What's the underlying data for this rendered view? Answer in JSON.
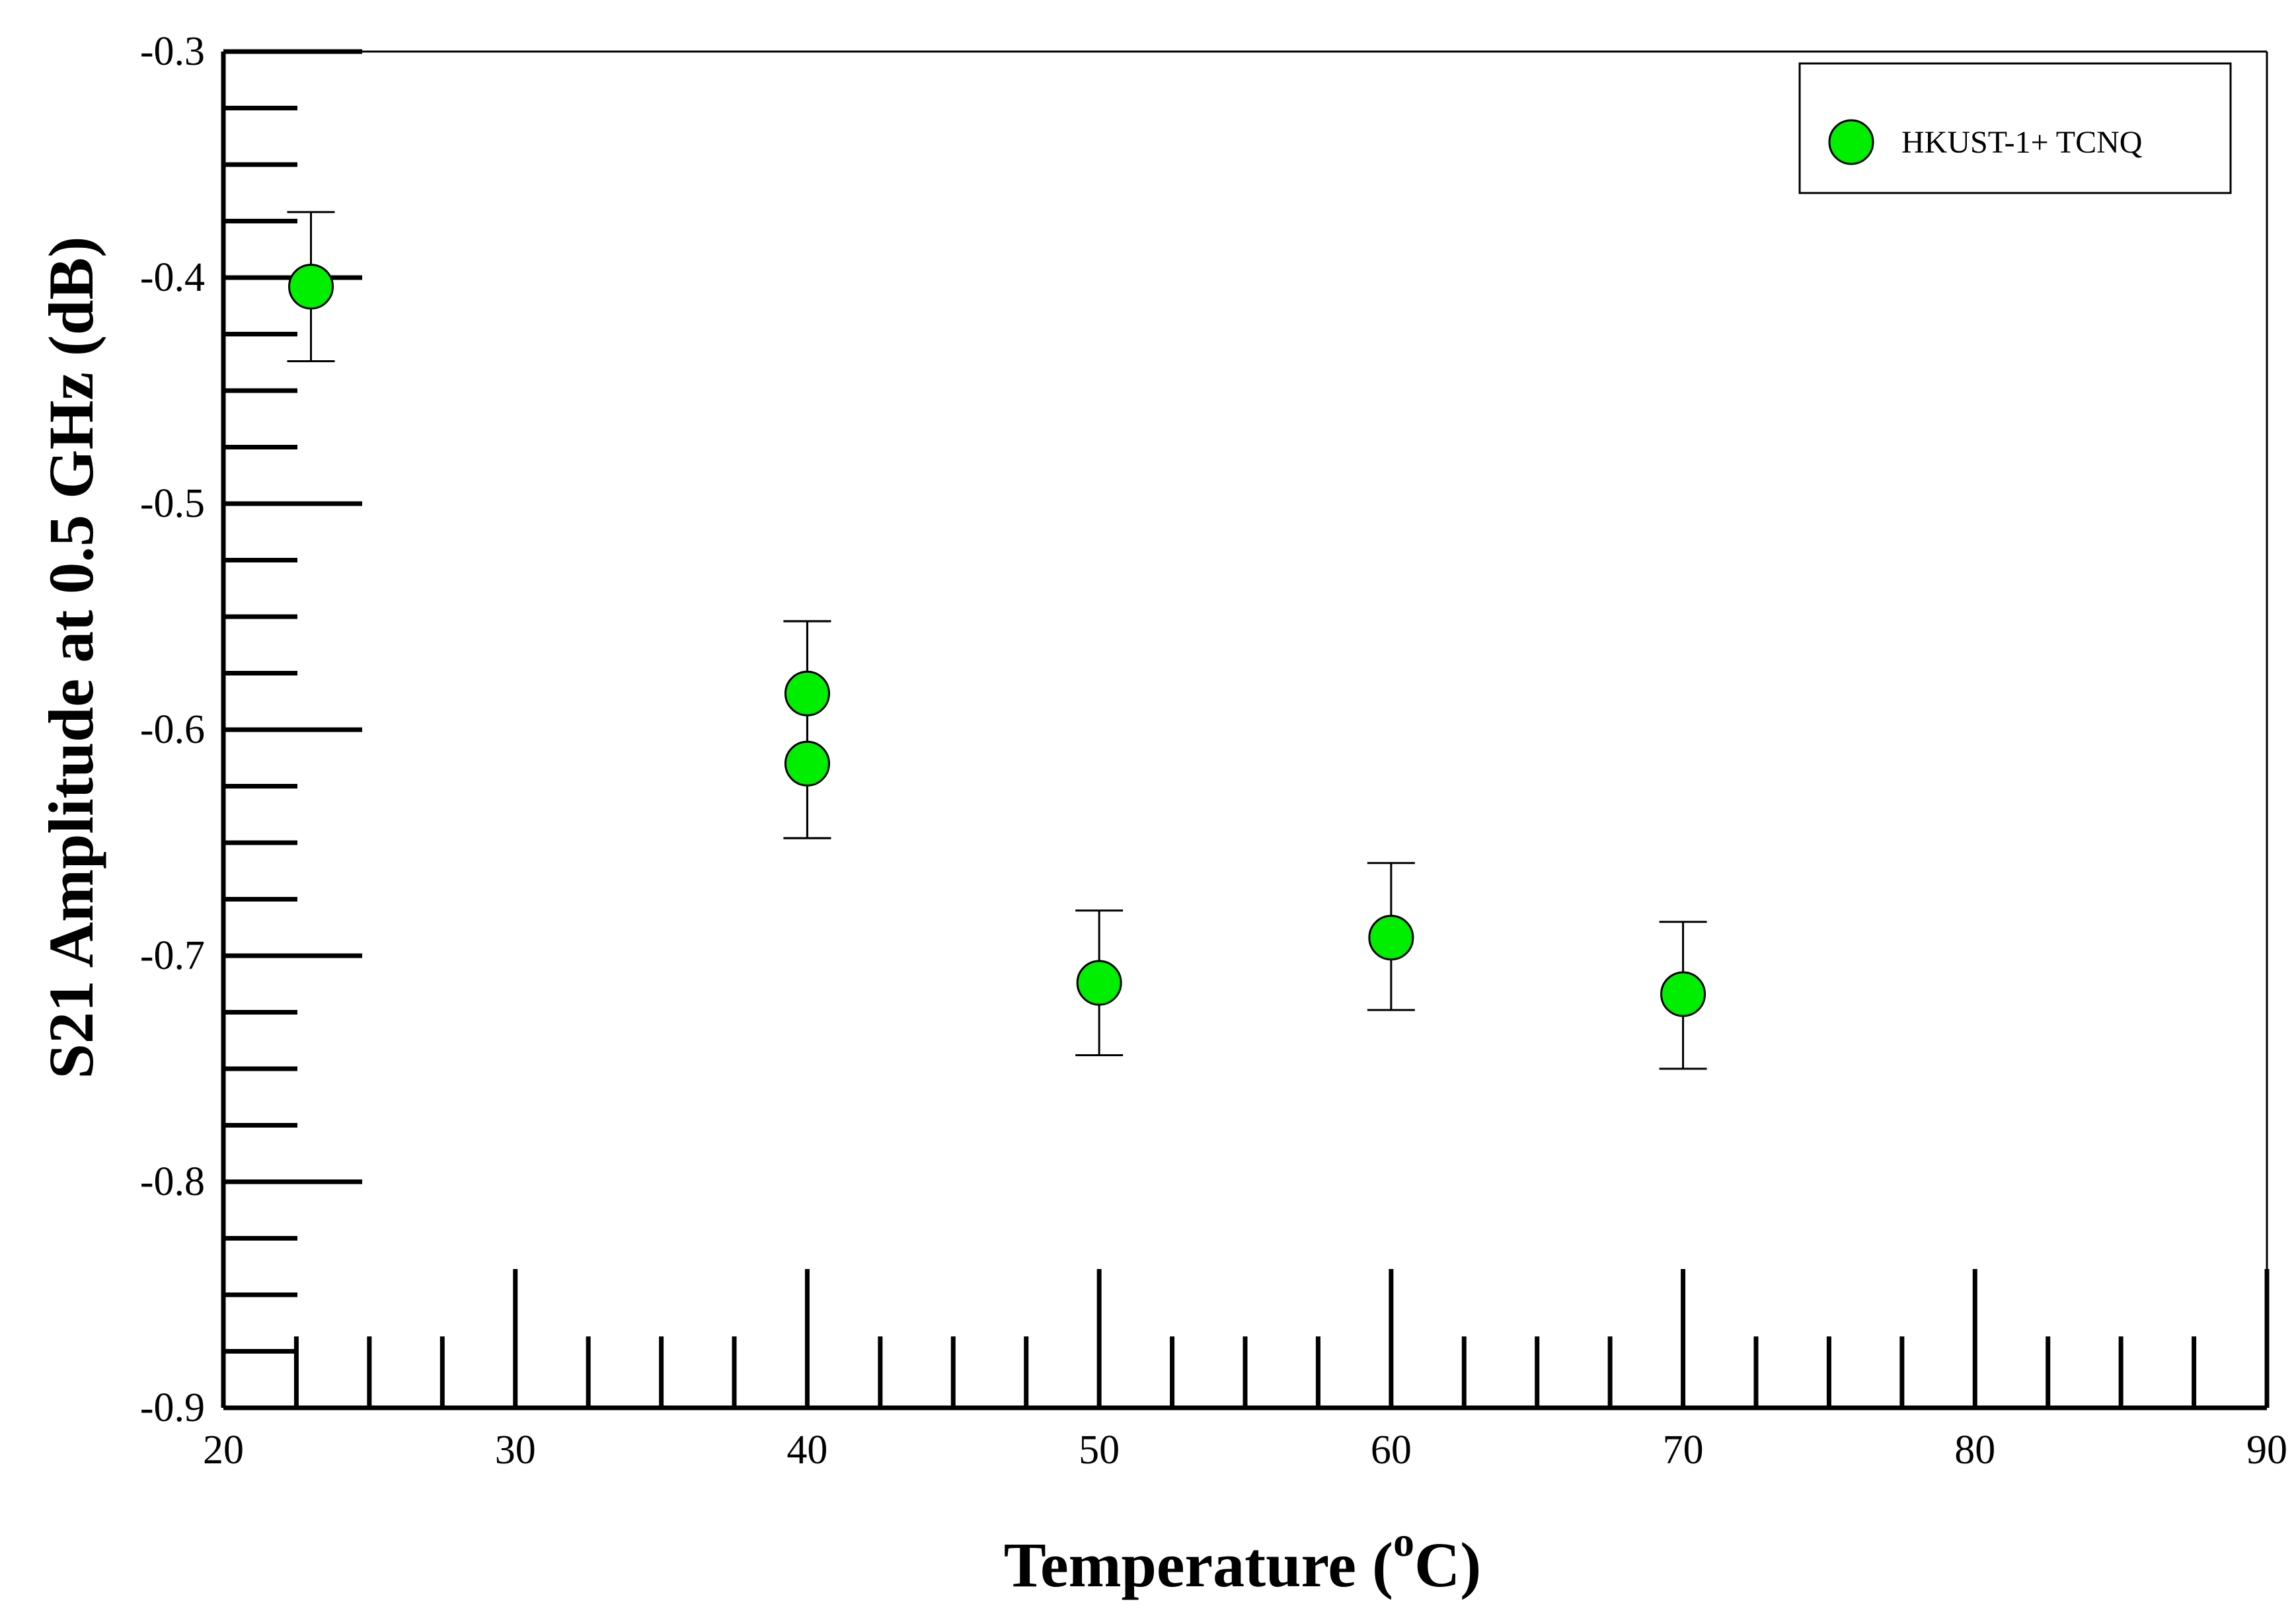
{
  "chart_data": {
    "type": "scatter",
    "title": "",
    "xlabel": "Temperature (",
    "xlabel_superscript": "o",
    "xlabel_suffix": "C)",
    "ylabel": "S21 Amplitude at 0.5 GHz (dB)",
    "xlim": [
      20,
      90
    ],
    "ylim": [
      -0.9,
      -0.3
    ],
    "x_major_ticks": [
      20,
      30,
      40,
      50,
      60,
      70,
      80,
      90
    ],
    "x_tick_labels": [
      "20",
      "30",
      "40",
      "50",
      "60",
      "70",
      "80",
      "90"
    ],
    "x_minor_step": 2.5,
    "y_major_ticks": [
      -0.9,
      -0.8,
      -0.7,
      -0.6,
      -0.5,
      -0.4,
      -0.3
    ],
    "y_tick_labels": [
      "-0.9",
      "-0.8",
      "-0.7",
      "-0.6",
      "-0.5",
      "-0.4",
      "-0.3"
    ],
    "y_minor_step": 0.025,
    "grid": false,
    "legend_position": "top-right",
    "series": [
      {
        "name": "HKUST-1+ TCNQ",
        "color": "#00ee00",
        "edge_color": "#000000",
        "points": [
          {
            "x": 23,
            "y": -0.404,
            "err_low": -0.437,
            "err_high": -0.371
          },
          {
            "x": 40,
            "y": -0.584,
            "err_low": -0.648,
            "err_high": -0.552
          },
          {
            "x": 40,
            "y": -0.615,
            "err_low": -0.648,
            "err_high": -0.552
          },
          {
            "x": 50,
            "y": -0.712,
            "err_low": -0.744,
            "err_high": -0.68
          },
          {
            "x": 60,
            "y": -0.692,
            "err_low": -0.724,
            "err_high": -0.659
          },
          {
            "x": 70,
            "y": -0.717,
            "err_low": -0.75,
            "err_high": -0.685
          }
        ]
      }
    ]
  }
}
